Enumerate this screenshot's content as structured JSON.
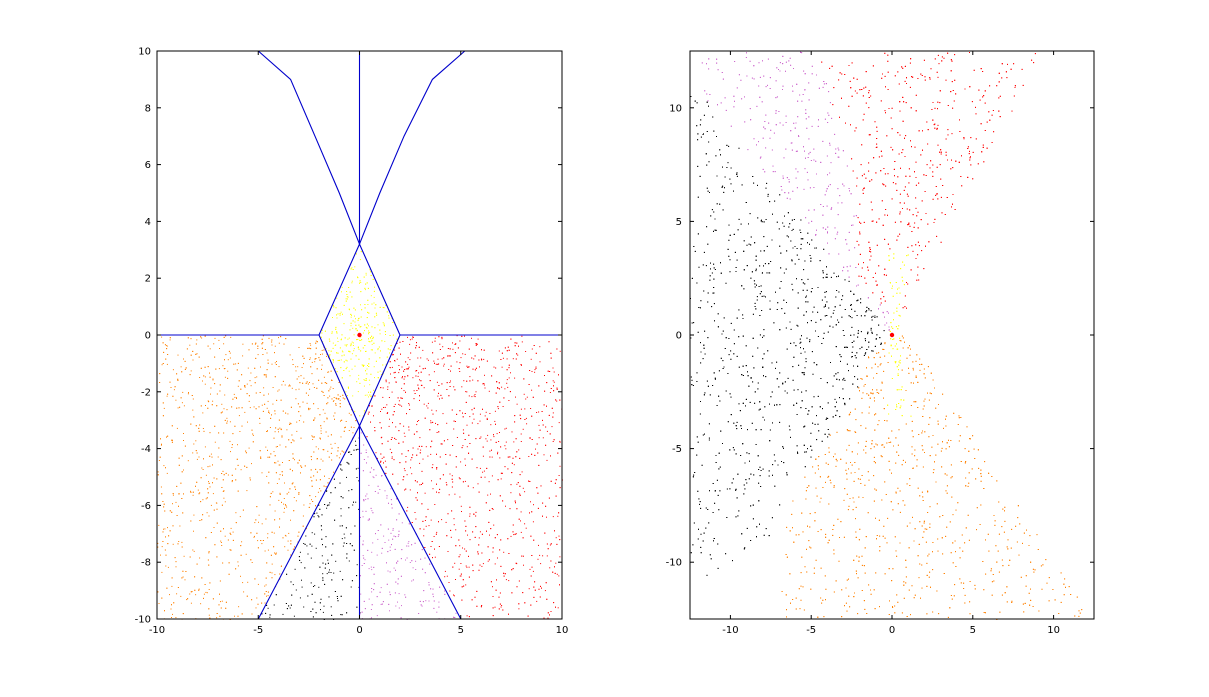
{
  "figure": {
    "background": "#ffffff"
  },
  "chart_data": [
    {
      "type": "scatter",
      "title": "",
      "xlabel": "",
      "ylabel": "",
      "xlim": [
        -10,
        10
      ],
      "ylim": [
        -10,
        10
      ],
      "grid": false,
      "x_ticks": [
        "-10",
        "-5",
        "0",
        "5",
        "10"
      ],
      "y_ticks": [
        "-10",
        "-8",
        "-6",
        "-4",
        "-2",
        "0",
        "2",
        "4",
        "6",
        "8",
        "10"
      ],
      "center_point": {
        "x": 0,
        "y": 0,
        "color": "#ff0000"
      },
      "colors": {
        "central_region": "#ffff00",
        "lower_right_region": "#ff0000",
        "lower_left_region": "#ff8000",
        "bottom_left_wedge": "#000000",
        "bottom_right_wedge": "#cc66cc",
        "boundary_lines": "#0000cc"
      },
      "boundaries": [
        {
          "name": "diamond",
          "points": [
            [
              0,
              3.2
            ],
            [
              2.0,
              0
            ],
            [
              0,
              -3.2
            ],
            [
              -2.0,
              0
            ],
            [
              0,
              3.2
            ]
          ]
        },
        {
          "name": "left-horizontal",
          "points": [
            [
              -10,
              0
            ],
            [
              -2.0,
              0
            ]
          ]
        },
        {
          "name": "right-horizontal",
          "points": [
            [
              2.0,
              0
            ],
            [
              10,
              0
            ]
          ]
        },
        {
          "name": "upper-vertical",
          "points": [
            [
              0,
              3.2
            ],
            [
              0,
              10
            ]
          ]
        },
        {
          "name": "upper-left-curve",
          "points": [
            [
              0,
              3.2
            ],
            [
              -1.0,
              5.0
            ],
            [
              -2.2,
              7.0
            ],
            [
              -3.4,
              9.0
            ],
            [
              -5.0,
              10
            ]
          ]
        },
        {
          "name": "upper-right-curve",
          "points": [
            [
              0,
              3.2
            ],
            [
              1.0,
              5.0
            ],
            [
              2.2,
              7.0
            ],
            [
              3.6,
              9.0
            ],
            [
              5.2,
              10
            ]
          ]
        },
        {
          "name": "lower-vertical",
          "points": [
            [
              0,
              -3.2
            ],
            [
              0,
              -10
            ]
          ]
        },
        {
          "name": "lower-left-line",
          "points": [
            [
              0,
              -3.2
            ],
            [
              -5.0,
              -10
            ]
          ]
        },
        {
          "name": "lower-right-line",
          "points": [
            [
              0,
              -3.2
            ],
            [
              5.0,
              -10
            ]
          ]
        }
      ]
    },
    {
      "type": "scatter",
      "title": "",
      "xlabel": "",
      "ylabel": "",
      "xlim": [
        -12.5,
        12.5
      ],
      "ylim": [
        -12.5,
        12.5
      ],
      "grid": false,
      "x_ticks": [
        "-10",
        "-5",
        "0",
        "5",
        "10"
      ],
      "y_ticks": [
        "-10",
        "-5",
        "0",
        "5",
        "10"
      ],
      "center_point": {
        "x": 0,
        "y": 0,
        "color": "#ff0000"
      },
      "colors": {
        "central_region": "#ffff00",
        "upper_region": "#ff0000",
        "lower_region": "#ff8000",
        "left_region": "#000000",
        "upper_left_region": "#cc66cc"
      }
    }
  ]
}
